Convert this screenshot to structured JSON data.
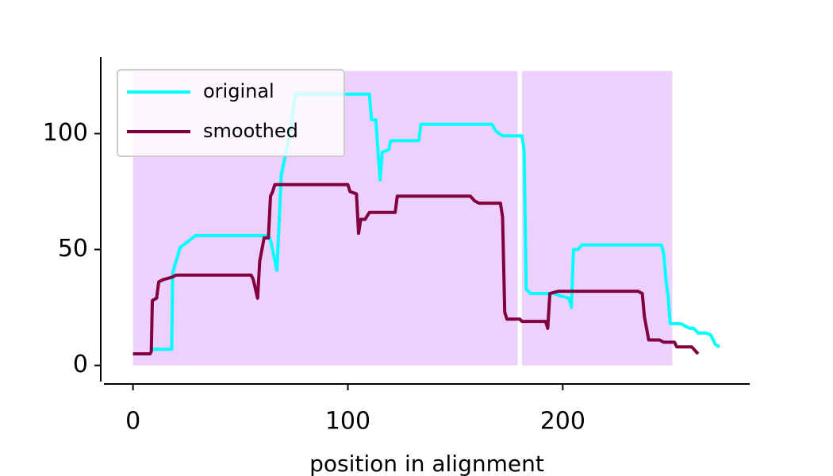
{
  "chart_data": {
    "type": "line",
    "x_label": "position in alignment",
    "xlim": [
      -15,
      287
    ],
    "ylim": [
      -8,
      133
    ],
    "xticks": [
      0,
      100,
      200
    ],
    "yticks": [
      0,
      50,
      100
    ],
    "legend": "upper left",
    "spans": [
      {
        "start": 0,
        "end": 179,
        "ymax": 127
      },
      {
        "start": 181,
        "end": 251,
        "ymax": 127
      }
    ],
    "span_color": "#eed0fc",
    "series": [
      {
        "name": "original",
        "color": "#00ffff",
        "x": [
          8,
          18,
          18.5,
          22,
          25,
          29,
          63,
          64,
          67,
          69,
          73,
          75.6,
          110,
          111,
          113,
          115,
          116,
          119,
          120,
          133,
          134,
          167,
          169,
          172,
          181,
          182,
          183,
          185,
          196,
          199,
          203,
          204,
          205,
          207,
          209,
          246,
          247,
          248,
          249,
          250,
          255,
          257,
          259,
          261,
          263,
          267,
          269,
          271,
          273
        ],
        "values": [
          7,
          7,
          40,
          51,
          53,
          56,
          56,
          54,
          41,
          82,
          100,
          117,
          117,
          106,
          106,
          80,
          92,
          93,
          97,
          97,
          104,
          104,
          101,
          99,
          99,
          93,
          33,
          31,
          31,
          30,
          29,
          25,
          50,
          50,
          52,
          52,
          48,
          37,
          30,
          18,
          18,
          17,
          16,
          16,
          14,
          14,
          13,
          9,
          8
        ]
      },
      {
        "name": "smoothed",
        "color": "#800040",
        "x": [
          0,
          8,
          8.5,
          9,
          11,
          12,
          14,
          18,
          20,
          55,
          56,
          58,
          59,
          61,
          63,
          64,
          65,
          66,
          100,
          101,
          104,
          105,
          106,
          108,
          110,
          122,
          123,
          157,
          159,
          161,
          171,
          172,
          173,
          174,
          180,
          181,
          192,
          193,
          194,
          198,
          235,
          237,
          238,
          239,
          240,
          245,
          247,
          252,
          253,
          260,
          262,
          263
        ],
        "values": [
          5,
          5,
          6,
          28,
          29,
          36,
          37,
          38,
          39,
          39,
          37,
          29,
          45,
          55,
          55,
          73,
          75,
          78,
          78,
          75,
          74,
          57,
          63,
          63,
          66,
          66,
          73,
          73,
          71,
          70,
          70,
          64,
          23,
          20,
          20,
          19,
          19,
          16,
          31,
          32,
          32,
          31,
          21,
          16,
          11,
          11,
          10,
          10,
          8,
          8,
          6,
          5
        ]
      }
    ]
  }
}
